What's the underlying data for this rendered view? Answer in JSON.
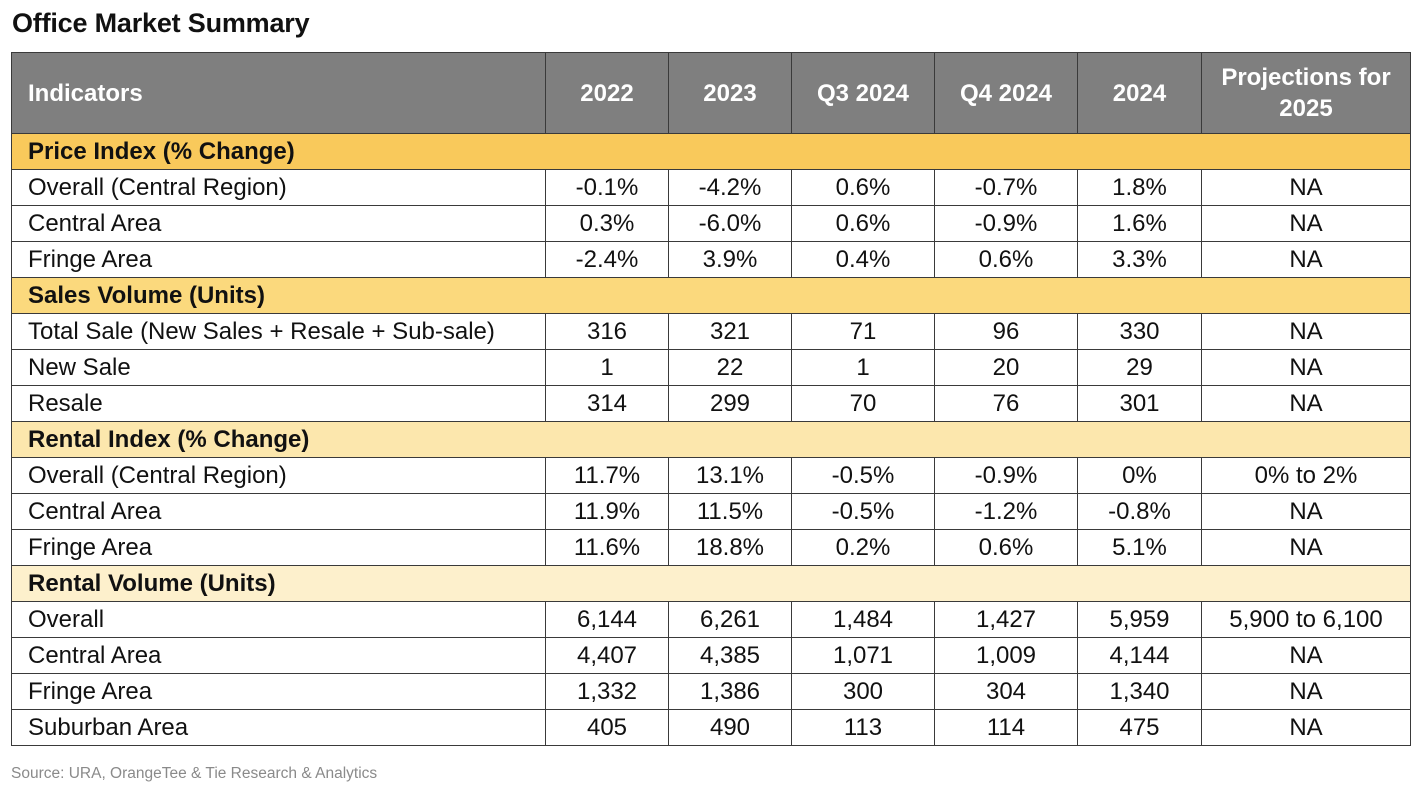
{
  "title": "Office Market Summary",
  "source": "Source: URA, OrangeTee & Tie Research & Analytics",
  "columns": [
    "Indicators",
    "2022",
    "2023",
    "Q3 2024",
    "Q4 2024",
    "2024",
    "Projections for 2025"
  ],
  "colors": {
    "header_bg": "#7f7f7f",
    "section_1": "#f9c95b",
    "section_2": "#fbd97d",
    "section_3": "#fce7ad",
    "section_4": "#fdf0cc"
  },
  "sections": [
    {
      "title": "Price Index (% Change)",
      "rows": [
        {
          "label": "Overall (Central Region)",
          "values": [
            "-0.1%",
            "-4.2%",
            "0.6%",
            "-0.7%",
            "1.8%",
            "NA"
          ]
        },
        {
          "label": "Central Area",
          "values": [
            "0.3%",
            "-6.0%",
            "0.6%",
            "-0.9%",
            "1.6%",
            "NA"
          ]
        },
        {
          "label": "Fringe Area",
          "values": [
            "-2.4%",
            "3.9%",
            "0.4%",
            "0.6%",
            "3.3%",
            "NA"
          ]
        }
      ]
    },
    {
      "title": "Sales Volume (Units)",
      "rows": [
        {
          "label": "Total Sale (New Sales + Resale + Sub-sale)",
          "values": [
            "316",
            "321",
            "71",
            "96",
            "330",
            "NA"
          ]
        },
        {
          "label": "New Sale",
          "values": [
            "1",
            "22",
            "1",
            "20",
            "29",
            "NA"
          ]
        },
        {
          "label": "Resale",
          "values": [
            "314",
            "299",
            "70",
            "76",
            "301",
            "NA"
          ]
        }
      ]
    },
    {
      "title": "Rental Index (% Change)",
      "rows": [
        {
          "label": "Overall (Central Region)",
          "values": [
            "11.7%",
            "13.1%",
            "-0.5%",
            "-0.9%",
            "0%",
            "0% to 2%"
          ]
        },
        {
          "label": "Central Area",
          "values": [
            "11.9%",
            "11.5%",
            "-0.5%",
            "-1.2%",
            "-0.8%",
            "NA"
          ]
        },
        {
          "label": "Fringe Area",
          "values": [
            "11.6%",
            "18.8%",
            "0.2%",
            "0.6%",
            "5.1%",
            "NA"
          ]
        }
      ]
    },
    {
      "title": "Rental Volume (Units)",
      "rows": [
        {
          "label": "Overall",
          "values": [
            "6,144",
            "6,261",
            "1,484",
            "1,427",
            "5,959",
            "5,900 to 6,100"
          ]
        },
        {
          "label": "Central Area",
          "values": [
            "4,407",
            "4,385",
            "1,071",
            "1,009",
            "4,144",
            "NA"
          ]
        },
        {
          "label": "Fringe Area",
          "values": [
            "1,332",
            "1,386",
            "300",
            "304",
            "1,340",
            "NA"
          ]
        },
        {
          "label": "Suburban Area",
          "values": [
            "405",
            "490",
            "113",
            "114",
            "475",
            "NA"
          ]
        }
      ]
    }
  ]
}
